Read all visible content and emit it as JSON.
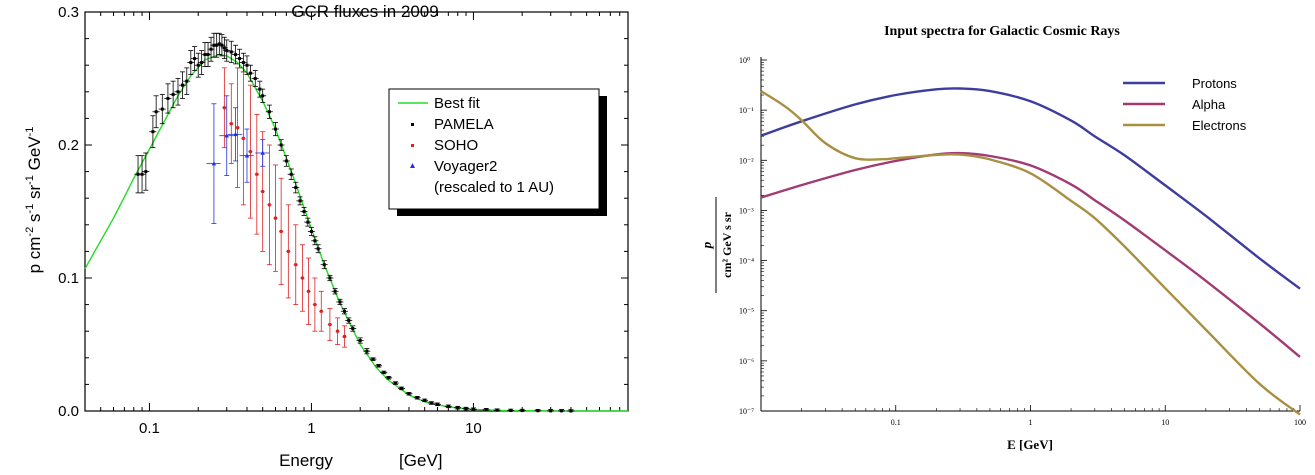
{
  "chart_data": [
    {
      "type": "scatter",
      "title": "GCR fluxes in 2009",
      "xlabel": "Energy",
      "xunit": "[GeV]",
      "ylabel_parts": {
        "base": "p cm",
        "e1": "-2",
        "s": " s",
        "e2": "-1",
        "sr": " sr",
        "e3": "-1",
        "gev": " GeV",
        "e4": "-1"
      },
      "xscale": "log",
      "xlim": [
        0.04,
        90
      ],
      "ylim": [
        0,
        0.3
      ],
      "xtick_labels": [
        "0.1",
        "1",
        "10"
      ],
      "ytick_labels": [
        "0.0",
        "0.1",
        "0.2",
        "0.3"
      ],
      "legend_position": "upper-right",
      "series": [
        {
          "name": "Best fit",
          "kind": "line",
          "color": "#22dd22",
          "x": [
            0.04,
            0.05,
            0.06,
            0.07,
            0.08,
            0.1,
            0.12,
            0.15,
            0.18,
            0.22,
            0.27,
            0.3,
            0.35,
            0.4,
            0.5,
            0.6,
            0.7,
            0.8,
            1.0,
            1.2,
            1.5,
            2.0,
            2.5,
            3.0,
            4.0,
            5.0,
            7.0,
            10,
            15,
            20,
            30,
            50,
            90
          ],
          "y": [
            0.107,
            0.128,
            0.145,
            0.161,
            0.175,
            0.197,
            0.215,
            0.237,
            0.252,
            0.264,
            0.268,
            0.267,
            0.262,
            0.254,
            0.233,
            0.212,
            0.19,
            0.171,
            0.137,
            0.11,
            0.081,
            0.05,
            0.033,
            0.023,
            0.012,
            0.007,
            0.003,
            0.0012,
            0.0004,
            0.0002,
            0.0001,
            0.0,
            0.0
          ]
        },
        {
          "name": "PAMELA",
          "kind": "points",
          "color": "#000000",
          "x": [
            0.085,
            0.09,
            0.095,
            0.105,
            0.11,
            0.12,
            0.13,
            0.14,
            0.15,
            0.16,
            0.17,
            0.18,
            0.19,
            0.2,
            0.21,
            0.22,
            0.23,
            0.24,
            0.25,
            0.26,
            0.27,
            0.28,
            0.29,
            0.3,
            0.32,
            0.34,
            0.36,
            0.38,
            0.4,
            0.42,
            0.45,
            0.48,
            0.5,
            0.55,
            0.6,
            0.65,
            0.7,
            0.75,
            0.8,
            0.85,
            0.9,
            0.95,
            1.0,
            1.05,
            1.1,
            1.2,
            1.3,
            1.4,
            1.5,
            1.6,
            1.7,
            1.8,
            2.0,
            2.2,
            2.4,
            2.6,
            2.8,
            3.0,
            3.3,
            3.6,
            4.0,
            4.5,
            5.0,
            5.5,
            6.0,
            7.0,
            8.0,
            9.0,
            10,
            12,
            14,
            17,
            20,
            25,
            30,
            35,
            40
          ],
          "y": [
            0.178,
            0.178,
            0.18,
            0.21,
            0.225,
            0.227,
            0.235,
            0.238,
            0.24,
            0.245,
            0.248,
            0.262,
            0.265,
            0.26,
            0.262,
            0.268,
            0.268,
            0.272,
            0.275,
            0.275,
            0.276,
            0.275,
            0.273,
            0.271,
            0.27,
            0.268,
            0.265,
            0.262,
            0.26,
            0.254,
            0.25,
            0.242,
            0.237,
            0.225,
            0.212,
            0.2,
            0.188,
            0.178,
            0.168,
            0.158,
            0.15,
            0.142,
            0.135,
            0.128,
            0.122,
            0.11,
            0.1,
            0.09,
            0.082,
            0.075,
            0.068,
            0.062,
            0.053,
            0.045,
            0.039,
            0.034,
            0.029,
            0.025,
            0.021,
            0.017,
            0.013,
            0.01,
            0.008,
            0.006,
            0.005,
            0.0035,
            0.0025,
            0.0018,
            0.0013,
            0.0009,
            0.0006,
            0.0004,
            0.0003,
            0.0002,
            0.0001,
            0.0001,
            0.0
          ],
          "yerr": [
            0.014,
            0.014,
            0.014,
            0.012,
            0.012,
            0.011,
            0.011,
            0.01,
            0.01,
            0.01,
            0.01,
            0.009,
            0.009,
            0.009,
            0.009,
            0.009,
            0.009,
            0.009,
            0.009,
            0.009,
            0.008,
            0.008,
            0.008,
            0.008,
            0.008,
            0.007,
            0.007,
            0.007,
            0.007,
            0.006,
            0.006,
            0.006,
            0.005,
            0.005,
            0.005,
            0.004,
            0.004,
            0.004,
            0.004,
            0.003,
            0.003,
            0.003,
            0.003,
            0.003,
            0.003,
            0.003,
            0.002,
            0.002,
            0.002,
            0.002,
            0.002,
            0.002,
            0.002,
            0.002,
            0.001,
            0.001,
            0.001,
            0.001,
            0.001,
            0.001,
            0.001,
            0.001,
            0.001,
            0.001,
            0.001,
            0.001,
            0.001,
            0.001,
            0.001,
            0.001,
            0.001,
            0.001,
            0.001,
            0.001,
            0.001,
            0.001,
            0.001
          ],
          "xerr_frac": 0.05
        },
        {
          "name": "SOHO",
          "kind": "points",
          "color": "#dd2222",
          "x": [
            0.29,
            0.32,
            0.35,
            0.38,
            0.42,
            0.46,
            0.5,
            0.55,
            0.6,
            0.65,
            0.72,
            0.8,
            0.88,
            0.96,
            1.05,
            1.15,
            1.3,
            1.45,
            1.6
          ],
          "y": [
            0.228,
            0.216,
            0.213,
            0.205,
            0.195,
            0.178,
            0.165,
            0.155,
            0.145,
            0.135,
            0.12,
            0.11,
            0.1,
            0.09,
            0.08,
            0.075,
            0.065,
            0.06,
            0.056
          ],
          "yerr": [
            0.03,
            0.03,
            0.045,
            0.05,
            0.05,
            0.045,
            0.045,
            0.045,
            0.04,
            0.04,
            0.035,
            0.03,
            0.025,
            0.025,
            0.02,
            0.015,
            0.012,
            0.01,
            0.008
          ],
          "xerr_frac": 0.03
        },
        {
          "name": "Voyager2",
          "name_note": "(rescaled to 1 AU)",
          "kind": "points",
          "color": "#2233dd",
          "x": [
            0.25,
            0.3,
            0.34,
            0.4,
            0.5
          ],
          "y": [
            0.186,
            0.207,
            0.208,
            0.192,
            0.194
          ],
          "yerr": [
            0.045,
            0.03,
            0.02,
            0.02,
            0.01
          ],
          "xerr_frac": 0.1
        }
      ]
    },
    {
      "type": "line",
      "title": "Input spectra for Galactic Cosmic Rays",
      "xlabel": "E [GeV]",
      "ylabel_num": "p",
      "ylabel_den": "cm² GeV s sr",
      "xscale": "log",
      "yscale": "log",
      "xlim": [
        0.01,
        100
      ],
      "ylim": [
        1e-07,
        1
      ],
      "xtick_labels": [
        "0.1",
        "1",
        "10",
        "100"
      ],
      "ytick_labels": [
        "10⁰",
        "10⁻¹",
        "10⁻²",
        "10⁻³",
        "10⁻⁴",
        "10⁻⁵",
        "10⁻⁶",
        "10⁻⁷"
      ],
      "legend_position": "upper-right",
      "series": [
        {
          "name": "Protons",
          "color": "#3d3d9e",
          "x": [
            0.01,
            0.02,
            0.05,
            0.1,
            0.2,
            0.3,
            0.5,
            1,
            2,
            3,
            5,
            10,
            20,
            50,
            100
          ],
          "y": [
            0.031,
            0.06,
            0.13,
            0.2,
            0.26,
            0.27,
            0.24,
            0.15,
            0.062,
            0.03,
            0.0125,
            0.00315,
            0.00078,
            0.000111,
            2.75e-05
          ]
        },
        {
          "name": "Alpha",
          "color": "#a23a74",
          "x": [
            0.01,
            0.02,
            0.05,
            0.1,
            0.2,
            0.3,
            0.5,
            1,
            2,
            3,
            5,
            10,
            20,
            50,
            100
          ],
          "y": [
            0.0018,
            0.0032,
            0.0064,
            0.0097,
            0.0131,
            0.0139,
            0.0122,
            0.0079,
            0.0033,
            0.0016,
            0.00063,
            0.00016,
            3.95e-05,
            5.6e-06,
            1.2e-06
          ]
        },
        {
          "name": "Electrons",
          "color": "#a89042",
          "x": [
            0.01,
            0.015,
            0.02,
            0.03,
            0.05,
            0.08,
            0.1,
            0.2,
            0.3,
            0.5,
            1,
            2,
            3,
            5,
            10,
            20,
            50,
            100
          ],
          "y": [
            0.24,
            0.12,
            0.063,
            0.022,
            0.011,
            0.0105,
            0.011,
            0.0128,
            0.013,
            0.0104,
            0.0055,
            0.00155,
            0.0007,
            0.00019,
            2.8e-05,
            4.2e-06,
            3.5e-07,
            8.5e-08
          ]
        }
      ]
    }
  ]
}
